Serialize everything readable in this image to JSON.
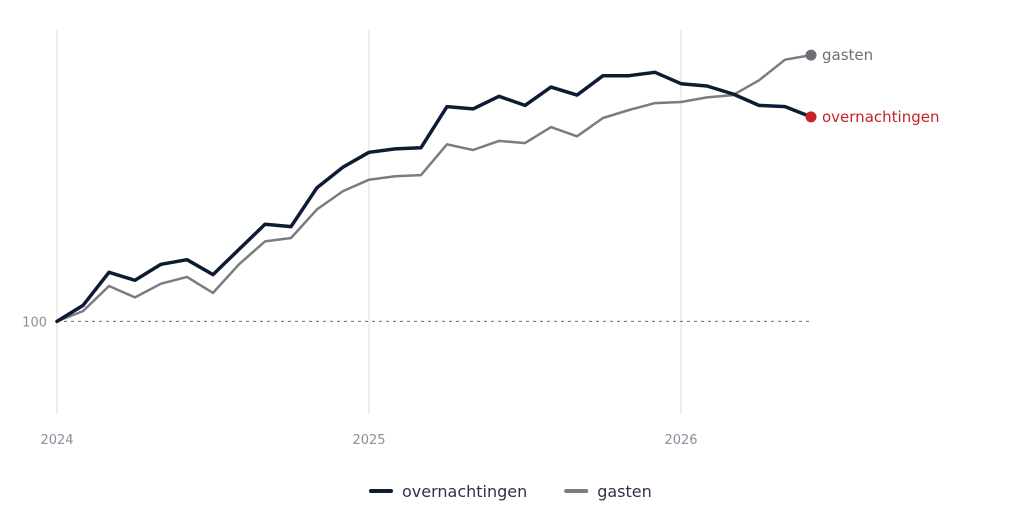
{
  "chart_data": {
    "type": "line",
    "x": [
      "2024-01",
      "2024-02",
      "2024-03",
      "2024-04",
      "2024-05",
      "2024-06",
      "2024-07",
      "2024-08",
      "2024-09",
      "2024-10",
      "2024-11",
      "2024-12",
      "2025-01",
      "2025-02",
      "2025-03",
      "2025-04",
      "2025-05",
      "2025-06",
      "2025-07",
      "2025-08",
      "2025-09",
      "2025-10",
      "2025-11",
      "2025-12",
      "2026-01",
      "2026-02",
      "2026-03",
      "2026-04",
      "2026-05",
      "2026-06"
    ],
    "x_ticks": [
      "2024",
      "2025",
      "2026"
    ],
    "y_ticks": [
      {
        "value": 100,
        "label": "100"
      }
    ],
    "ylim": [
      92.6,
      125.5
    ],
    "reference_line": 100,
    "series": [
      {
        "name": "overnachtingen",
        "color": "#0d1b33",
        "end_label_color": "#c4232a",
        "end_label_position": "right",
        "values": [
          100.0,
          101.4,
          104.3,
          103.6,
          105.0,
          105.4,
          104.1,
          106.3,
          108.5,
          108.3,
          111.7,
          113.5,
          114.8,
          115.1,
          115.2,
          118.8,
          118.6,
          119.7,
          118.9,
          120.5,
          119.8,
          121.5,
          121.5,
          121.8,
          120.8,
          120.6,
          119.9,
          118.9,
          118.8,
          117.9
        ]
      },
      {
        "name": "gasten",
        "color": "#7b7b83",
        "end_label_color": "#6b6f78",
        "end_label_position": "right",
        "values": [
          100.0,
          100.9,
          103.1,
          102.1,
          103.3,
          103.9,
          102.5,
          105.0,
          107.0,
          107.3,
          109.8,
          111.4,
          112.4,
          112.7,
          112.8,
          115.5,
          115.0,
          115.8,
          115.6,
          117.0,
          116.2,
          117.8,
          118.5,
          119.1,
          119.2,
          119.6,
          119.8,
          121.1,
          122.9,
          123.3
        ]
      }
    ],
    "legend": {
      "position": "bottom",
      "items": [
        "overnachtingen",
        "gasten"
      ]
    },
    "grid": {
      "vertical": true,
      "horizontal": false
    }
  }
}
